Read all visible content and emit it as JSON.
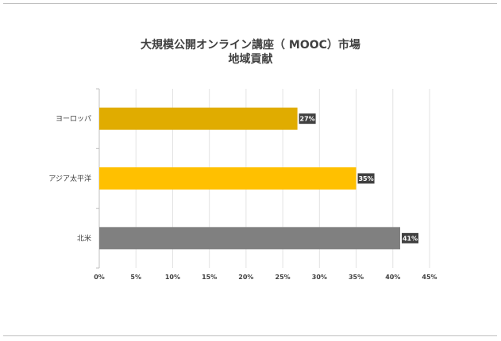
{
  "chart_data": {
    "type": "bar",
    "orientation": "horizontal",
    "title": "大規模公開オンライン講座（ MOOC）市場",
    "subtitle": "地域貢献",
    "categories": [
      "ヨーロッパ",
      "アジア太平洋",
      "北米"
    ],
    "values": [
      27,
      35,
      41
    ],
    "data_labels": [
      "27%",
      "35%",
      "41%"
    ],
    "colors": [
      "#e0ac00",
      "#ffc000",
      "#808080"
    ],
    "xlim": [
      0,
      45
    ],
    "xticks": [
      "0%",
      "5%",
      "10%",
      "15%",
      "20%",
      "25%",
      "30%",
      "35%",
      "40%",
      "45%"
    ],
    "grid": true,
    "legend": "none"
  }
}
